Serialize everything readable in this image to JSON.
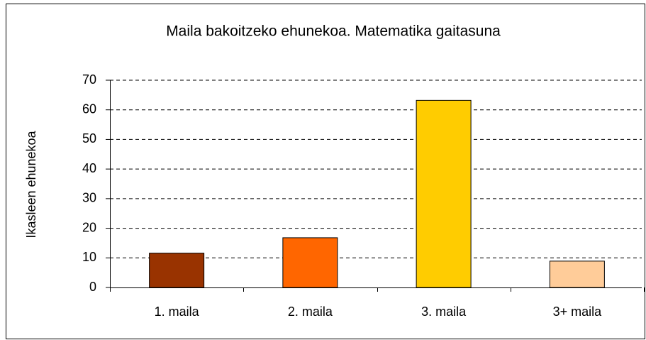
{
  "chart_data": {
    "type": "bar",
    "title": "Maila bakoitzeko ehunekoa. Matematika gaitasuna",
    "y_label": "Ikasleen ehunekoa",
    "categories": [
      "1. maila",
      "2. maila",
      "3. maila",
      "3+ maila"
    ],
    "values": [
      11.6,
      16.8,
      63.2,
      8.9
    ],
    "colors": [
      "#993300",
      "#ff6600",
      "#ffcc00",
      "#ffcc99"
    ],
    "ylim": [
      0,
      70
    ],
    "yticks": [
      0,
      10,
      20,
      30,
      40,
      50,
      60,
      70
    ],
    "grid": true
  }
}
